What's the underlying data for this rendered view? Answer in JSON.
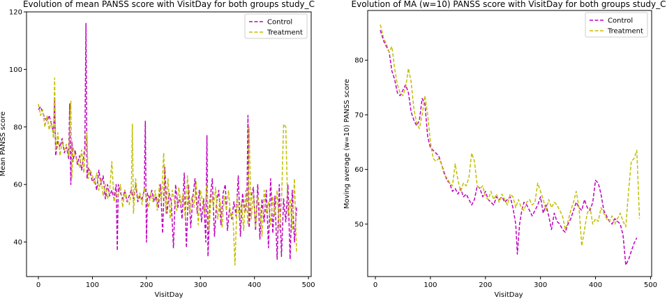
{
  "chart_data": [
    {
      "type": "line",
      "title": "Evolution of mean PANSS score with VisitDay for both groups study_C",
      "xlabel": "VisitDay",
      "ylabel": "Mean PANSS score",
      "xlim": [
        -22,
        505
      ],
      "ylim": [
        28,
        120
      ],
      "xticks": [
        0,
        100,
        200,
        300,
        400,
        500
      ],
      "yticks": [
        40,
        60,
        80,
        100,
        120
      ],
      "grid": false,
      "legend_position": "upper right",
      "series": [
        {
          "name": "Control",
          "color": "#bf00bf",
          "style": "dashed",
          "x": [
            0,
            4,
            8,
            12,
            16,
            20,
            24,
            28,
            30,
            32,
            36,
            40,
            44,
            48,
            52,
            56,
            58,
            60,
            62,
            64,
            68,
            72,
            76,
            80,
            84,
            86,
            88,
            90,
            92,
            96,
            100,
            104,
            108,
            112,
            116,
            120,
            124,
            128,
            132,
            136,
            140,
            144,
            146,
            148,
            152,
            156,
            160,
            164,
            168,
            172,
            176,
            180,
            184,
            188,
            192,
            196,
            198,
            200,
            202,
            206,
            210,
            214,
            218,
            222,
            226,
            230,
            234,
            238,
            242,
            246,
            250,
            254,
            258,
            262,
            266,
            270,
            274,
            278,
            282,
            286,
            290,
            294,
            298,
            302,
            306,
            310,
            312,
            314,
            318,
            322,
            326,
            330,
            334,
            338,
            342,
            346,
            350,
            354,
            358,
            362,
            366,
            370,
            374,
            378,
            382,
            386,
            388,
            390,
            394,
            398,
            402,
            406,
            410,
            414,
            418,
            422,
            426,
            430,
            434,
            438,
            442,
            446,
            450,
            454,
            458,
            462,
            466,
            470,
            474,
            478
          ],
          "y": [
            86,
            87,
            85,
            83,
            82,
            84,
            81,
            78,
            89,
            70,
            75,
            73,
            76,
            71,
            73,
            69,
            88,
            60,
            75,
            68,
            72,
            67,
            70,
            65,
            70,
            73,
            116,
            62,
            66,
            64,
            61,
            62,
            58,
            65,
            60,
            63,
            55,
            60,
            56,
            58,
            55,
            60,
            37,
            60,
            57,
            55,
            58,
            54,
            56,
            58,
            55,
            60,
            54,
            56,
            55,
            58,
            82,
            40,
            57,
            55,
            58,
            54,
            56,
            52,
            60,
            43,
            66,
            50,
            57,
            54,
            38,
            60,
            52,
            56,
            48,
            64,
            38,
            60,
            45,
            56,
            62,
            50,
            58,
            47,
            55,
            40,
            77,
            35,
            55,
            62,
            42,
            54,
            58,
            46,
            57,
            60,
            44,
            52,
            48,
            54,
            49,
            63,
            42,
            57,
            50,
            54,
            84,
            45,
            56,
            59,
            44,
            60,
            41,
            55,
            47,
            58,
            38,
            62,
            43,
            56,
            34,
            60,
            35,
            55,
            47,
            60,
            34,
            58,
            40,
            52
          ]
        },
        {
          "name": "Treatment",
          "color": "#bfbf00",
          "style": "dashed",
          "x": [
            0,
            4,
            8,
            12,
            16,
            20,
            24,
            28,
            30,
            32,
            36,
            40,
            44,
            48,
            52,
            56,
            60,
            62,
            64,
            68,
            72,
            76,
            80,
            84,
            88,
            90,
            92,
            96,
            100,
            104,
            108,
            112,
            116,
            120,
            124,
            128,
            132,
            136,
            140,
            144,
            148,
            152,
            156,
            160,
            164,
            168,
            172,
            174,
            176,
            180,
            184,
            188,
            192,
            196,
            200,
            204,
            208,
            212,
            216,
            220,
            224,
            228,
            232,
            236,
            240,
            244,
            248,
            252,
            256,
            260,
            264,
            268,
            272,
            276,
            280,
            284,
            288,
            292,
            296,
            300,
            304,
            308,
            312,
            316,
            320,
            324,
            328,
            332,
            336,
            340,
            344,
            348,
            352,
            356,
            360,
            364,
            368,
            372,
            376,
            380,
            384,
            388,
            390,
            394,
            398,
            402,
            406,
            410,
            414,
            418,
            422,
            426,
            430,
            434,
            438,
            442,
            446,
            450,
            454,
            458,
            462,
            466,
            470,
            474,
            478
          ],
          "y": [
            88,
            84,
            86,
            80,
            84,
            79,
            82,
            76,
            97,
            72,
            78,
            70,
            75,
            72,
            74,
            70,
            89,
            62,
            73,
            70,
            68,
            66,
            72,
            64,
            75,
            78,
            62,
            65,
            63,
            60,
            64,
            58,
            62,
            56,
            60,
            55,
            58,
            68,
            54,
            57,
            56,
            60,
            52,
            58,
            55,
            53,
            57,
            81,
            50,
            62,
            55,
            57,
            53,
            59,
            55,
            52,
            57,
            54,
            58,
            51,
            60,
            54,
            71,
            50,
            62,
            48,
            58,
            54,
            51,
            59,
            53,
            57,
            48,
            63,
            50,
            56,
            52,
            61,
            46,
            58,
            54,
            50,
            60,
            44,
            57,
            52,
            59,
            48,
            55,
            45,
            56,
            51,
            58,
            49,
            50,
            32,
            56,
            48,
            54,
            44,
            58,
            46,
            80,
            48,
            57,
            45,
            56,
            52,
            42,
            58,
            50,
            54,
            46,
            56,
            49,
            58,
            44,
            53,
            81,
            80,
            49,
            55,
            44,
            62,
            36
          ]
        }
      ]
    },
    {
      "type": "line",
      "title": "Evolution of MA (w=10) PANSS score with VisitDay for both groups study_C",
      "xlabel": "VisitDay",
      "ylabel": "Moving average (w=10) PANSS score",
      "xlim": [
        -14,
        502
      ],
      "ylim": [
        40.4,
        89.1
      ],
      "xticks": [
        0,
        100,
        200,
        300,
        400,
        500
      ],
      "yticks": [
        50,
        60,
        70,
        80
      ],
      "grid": false,
      "legend_position": "upper right",
      "series": [
        {
          "name": "Control",
          "color": "#bf00bf",
          "style": "dashed",
          "x": [
            9,
            15,
            20,
            25,
            30,
            35,
            40,
            45,
            50,
            55,
            60,
            65,
            70,
            75,
            80,
            85,
            90,
            95,
            100,
            105,
            110,
            115,
            120,
            125,
            130,
            135,
            140,
            145,
            150,
            155,
            160,
            165,
            170,
            175,
            180,
            185,
            190,
            195,
            200,
            205,
            210,
            215,
            220,
            225,
            230,
            235,
            240,
            245,
            250,
            255,
            258,
            262,
            266,
            270,
            275,
            280,
            285,
            290,
            295,
            300,
            305,
            310,
            315,
            320,
            325,
            330,
            335,
            340,
            345,
            350,
            355,
            360,
            365,
            370,
            375,
            380,
            385,
            390,
            395,
            400,
            405,
            410,
            415,
            420,
            425,
            430,
            435,
            440,
            445,
            450,
            455,
            460,
            465,
            470,
            475
          ],
          "y": [
            85.5,
            83.5,
            82.5,
            81.5,
            78.0,
            76.5,
            74.0,
            73.5,
            74.5,
            75.5,
            74.0,
            70.5,
            69.0,
            68.0,
            69.0,
            73.0,
            72.0,
            66.0,
            64.0,
            63.5,
            63.0,
            62.5,
            61.0,
            59.5,
            58.0,
            57.5,
            56.0,
            56.5,
            55.5,
            56.5,
            55.0,
            55.5,
            54.5,
            53.5,
            54.5,
            57.0,
            56.5,
            55.0,
            56.0,
            54.5,
            54.0,
            53.5,
            55.0,
            54.5,
            55.0,
            54.0,
            54.5,
            55.0,
            53.0,
            50.0,
            44.5,
            50.0,
            52.5,
            54.0,
            53.5,
            52.5,
            51.5,
            52.5,
            53.5,
            55.0,
            52.0,
            53.5,
            51.5,
            49.0,
            52.0,
            50.5,
            50.0,
            49.0,
            48.5,
            50.0,
            51.0,
            52.5,
            54.0,
            53.0,
            52.5,
            54.5,
            53.0,
            52.5,
            54.0,
            58.0,
            57.5,
            55.5,
            52.5,
            51.5,
            50.5,
            50.0,
            51.0,
            50.5,
            50.0,
            48.0,
            42.5,
            43.5,
            45.0,
            46.5,
            47.5
          ]
        },
        {
          "name": "Treatment",
          "color": "#bfbf00",
          "style": "dashed",
          "x": [
            9,
            15,
            20,
            25,
            30,
            35,
            40,
            45,
            50,
            55,
            60,
            65,
            70,
            75,
            80,
            85,
            90,
            95,
            100,
            105,
            110,
            115,
            120,
            125,
            130,
            135,
            140,
            145,
            150,
            155,
            160,
            165,
            170,
            175,
            180,
            185,
            190,
            195,
            200,
            205,
            210,
            215,
            220,
            225,
            230,
            235,
            240,
            245,
            250,
            255,
            260,
            265,
            270,
            275,
            280,
            285,
            290,
            295,
            300,
            305,
            310,
            315,
            320,
            325,
            330,
            335,
            340,
            345,
            350,
            355,
            360,
            365,
            370,
            375,
            380,
            385,
            390,
            395,
            400,
            405,
            410,
            415,
            420,
            425,
            430,
            435,
            440,
            445,
            450,
            455,
            460,
            465,
            470,
            475,
            480
          ],
          "y": [
            86.5,
            84.0,
            83.0,
            81.5,
            82.5,
            78.5,
            75.5,
            74.0,
            73.5,
            75.0,
            78.5,
            76.0,
            71.0,
            68.5,
            67.5,
            70.0,
            73.5,
            70.0,
            65.0,
            62.0,
            61.5,
            62.0,
            61.0,
            59.0,
            58.5,
            57.5,
            57.0,
            61.0,
            58.0,
            56.0,
            57.5,
            57.0,
            58.5,
            63.0,
            61.5,
            57.0,
            56.5,
            57.0,
            55.0,
            54.5,
            56.0,
            54.5,
            55.5,
            54.0,
            55.5,
            54.5,
            53.5,
            55.5,
            55.0,
            53.0,
            54.5,
            53.0,
            52.5,
            54.0,
            54.5,
            53.5,
            54.0,
            57.5,
            56.0,
            54.5,
            52.5,
            54.5,
            53.0,
            54.0,
            53.5,
            52.5,
            51.5,
            49.0,
            50.5,
            52.5,
            54.0,
            56.0,
            53.0,
            46.0,
            49.0,
            52.0,
            53.0,
            50.0,
            51.0,
            50.5,
            53.0,
            52.0,
            51.0,
            50.5,
            51.5,
            50.0,
            51.0,
            52.0,
            50.5,
            49.5,
            56.0,
            61.5,
            62.0,
            63.5,
            51.0
          ]
        }
      ]
    }
  ]
}
